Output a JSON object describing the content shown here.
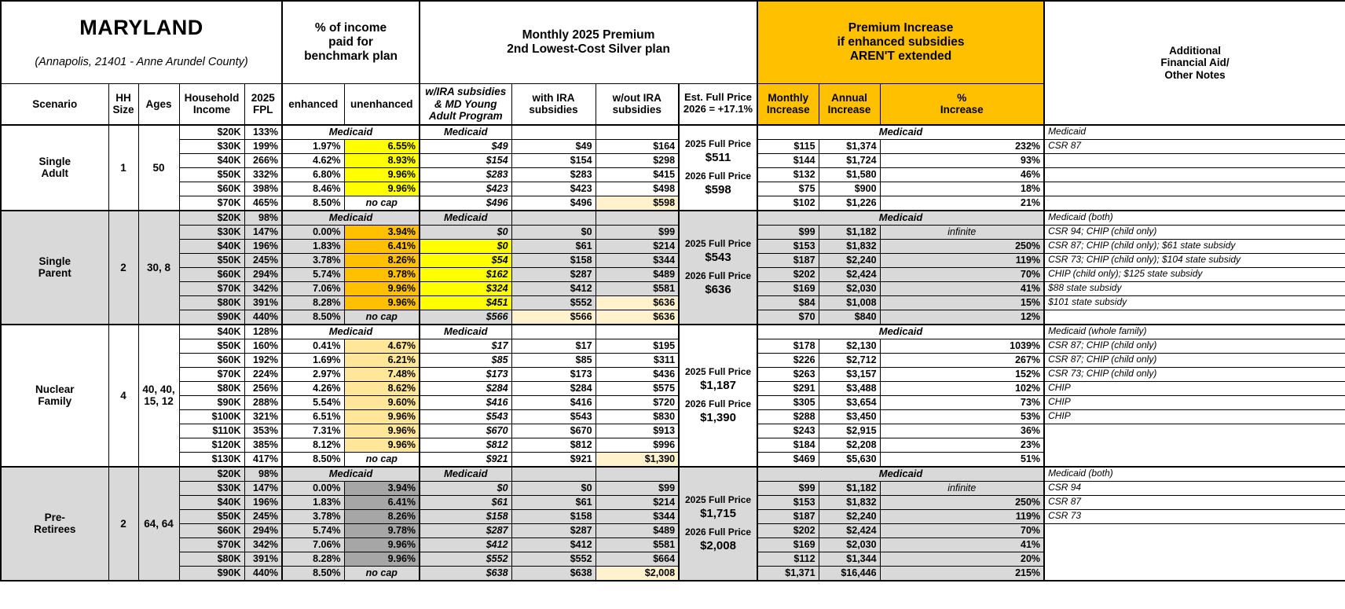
{
  "palette": {
    "orange": "#FFC000",
    "yellow": "#FFFF00",
    "amber": "#FFE699",
    "dkgray": "#A6A6A6",
    "cream": "#FFF2CC",
    "section_gray": "#D9D9D9",
    "white": "#FFFFFF"
  },
  "header": {
    "title": "MARYLAND",
    "subtitle": "(Annapolis, 21401 - Anne Arundel County)",
    "group_income": "% of income\npaid for\nbenchmark plan",
    "group_premium": "Monthly 2025 Premium\n2nd Lowest-Cost Silver plan",
    "group_increase": "Premium Increase\nif enhanced subsidies\nAREN'T extended",
    "group_notes": "Additional\nFinancial Aid/\nOther Notes",
    "cols": {
      "scenario": "Scenario",
      "hh": "HH\nSize",
      "ages": "Ages",
      "income": "Household\nIncome",
      "fpl": "2025\nFPL",
      "enhanced": "enhanced",
      "unenhanced": "unenhanced",
      "wira": "w/IRA subsidies\n& MD Young\nAdult Program",
      "with_ira": "with IRA\nsubsidies",
      "wout_ira": "w/out IRA\nsubsidies",
      "full_price": "Est. Full Price\n2026 = +17.1%",
      "monthly": "Monthly\nIncrease",
      "annual": "Annual\nIncrease",
      "pct": "%\nIncrease"
    }
  },
  "sections": [
    {
      "name": "Single\nAdult",
      "hh": "1",
      "ages": "50",
      "gray": false,
      "note_lines": "all",
      "full_price": {
        "label_2025": "2025 Full Price",
        "value_2025": "$511",
        "label_2026": "2026 Full Price",
        "value_2026": "$598"
      },
      "rows": [
        {
          "medicaid": true,
          "income": "$20K",
          "fpl": "133%",
          "benchmark": "Medicaid",
          "premium": "Medicaid",
          "increase": "Medicaid",
          "note": "Medicaid"
        },
        {
          "income": "$30K",
          "fpl": "199%",
          "enhanced": "1.97%",
          "unenhanced": "6.55%",
          "un_hl": "yellow",
          "wira": "$49",
          "with_ira": "$49",
          "wout": "$164",
          "monthly": "$115",
          "annual": "$1,374",
          "pct": "232%",
          "note": "CSR 87"
        },
        {
          "income": "$40K",
          "fpl": "266%",
          "enhanced": "4.62%",
          "unenhanced": "8.93%",
          "un_hl": "yellow",
          "wira": "$154",
          "with_ira": "$154",
          "wout": "$298",
          "monthly": "$144",
          "annual": "$1,724",
          "pct": "93%",
          "note": ""
        },
        {
          "income": "$50K",
          "fpl": "332%",
          "enhanced": "6.80%",
          "unenhanced": "9.96%",
          "un_hl": "yellow",
          "wira": "$283",
          "with_ira": "$283",
          "wout": "$415",
          "monthly": "$132",
          "annual": "$1,580",
          "pct": "46%",
          "note": ""
        },
        {
          "income": "$60K",
          "fpl": "398%",
          "enhanced": "8.46%",
          "unenhanced": "9.96%",
          "un_hl": "yellow",
          "wira": "$423",
          "with_ira": "$423",
          "wout": "$498",
          "monthly": "$75",
          "annual": "$900",
          "pct": "18%",
          "note": ""
        },
        {
          "income": "$70K",
          "fpl": "465%",
          "enhanced": "8.50%",
          "unenhanced": "no cap",
          "wira": "$496",
          "with_ira": "$496",
          "wout": "$598",
          "wout_hl": "cream",
          "monthly": "$102",
          "annual": "$1,226",
          "pct": "21%",
          "note": ""
        }
      ]
    },
    {
      "name": "Single\nParent",
      "hh": "2",
      "ages": "30, 8",
      "gray": true,
      "note_lines": "all",
      "full_price": {
        "label_2025": "2025 Full Price",
        "value_2025": "$543",
        "label_2026": "2026 Full Price",
        "value_2026": "$636"
      },
      "rows": [
        {
          "medicaid": true,
          "income": "$20K",
          "fpl": "98%",
          "benchmark": "Medicaid",
          "premium": "Medicaid",
          "increase": "Medicaid",
          "note": "Medicaid (both)"
        },
        {
          "income": "$30K",
          "fpl": "147%",
          "enhanced": "0.00%",
          "unenhanced": "3.94%",
          "un_hl": "orange",
          "wira": "$0",
          "with_ira": "$0",
          "wout": "$99",
          "monthly": "$99",
          "annual": "$1,182",
          "pct": "infinite",
          "note": "CSR 94; CHIP (child only)"
        },
        {
          "income": "$40K",
          "fpl": "196%",
          "enhanced": "1.83%",
          "unenhanced": "6.41%",
          "un_hl": "orange",
          "wira": "$0",
          "wira_hl": "yellow",
          "with_ira": "$61",
          "wout": "$214",
          "monthly": "$153",
          "annual": "$1,832",
          "pct": "250%",
          "note": "CSR 87; CHIP (child only); $61 state subsidy"
        },
        {
          "income": "$50K",
          "fpl": "245%",
          "enhanced": "3.78%",
          "unenhanced": "8.26%",
          "un_hl": "orange",
          "wira": "$54",
          "wira_hl": "yellow",
          "with_ira": "$158",
          "wout": "$344",
          "monthly": "$187",
          "annual": "$2,240",
          "pct": "119%",
          "note": "CSR 73; CHIP (child only); $104 state subsidy"
        },
        {
          "income": "$60K",
          "fpl": "294%",
          "enhanced": "5.74%",
          "unenhanced": "9.78%",
          "un_hl": "orange",
          "wira": "$162",
          "wira_hl": "yellow",
          "with_ira": "$287",
          "wout": "$489",
          "monthly": "$202",
          "annual": "$2,424",
          "pct": "70%",
          "note": "CHIP (child only); $125 state subsidy"
        },
        {
          "income": "$70K",
          "fpl": "342%",
          "enhanced": "7.06%",
          "unenhanced": "9.96%",
          "un_hl": "orange",
          "wira": "$324",
          "wira_hl": "yellow",
          "with_ira": "$412",
          "wout": "$581",
          "monthly": "$169",
          "annual": "$2,030",
          "pct": "41%",
          "note": "$88 state subsidy"
        },
        {
          "income": "$80K",
          "fpl": "391%",
          "enhanced": "8.28%",
          "unenhanced": "9.96%",
          "un_hl": "orange",
          "wira": "$451",
          "wira_hl": "yellow",
          "with_ira": "$552",
          "wout": "$636",
          "wout_hl": "cream",
          "monthly": "$84",
          "annual": "$1,008",
          "pct": "15%",
          "note": "$101 state subsidy"
        },
        {
          "income": "$90K",
          "fpl": "440%",
          "enhanced": "8.50%",
          "unenhanced": "no cap",
          "wira": "$566",
          "with_ira": "$566",
          "with_hl": "cream",
          "wout": "$636",
          "wout_hl": "cream",
          "monthly": "$70",
          "annual": "$840",
          "pct": "12%",
          "note": ""
        }
      ]
    },
    {
      "name": "Nuclear\nFamily",
      "hh": "4",
      "ages": "40, 40,\n15, 12",
      "gray": false,
      "note_lines": "content",
      "full_price": {
        "label_2025": "2025 Full Price",
        "value_2025": "$1,187",
        "label_2026": "2026 Full Price",
        "value_2026": "$1,390"
      },
      "rows": [
        {
          "medicaid": true,
          "income": "$40K",
          "fpl": "128%",
          "benchmark": "Medicaid",
          "premium": "Medicaid",
          "increase": "Medicaid",
          "note": "Medicaid (whole family)"
        },
        {
          "income": "$50K",
          "fpl": "160%",
          "enhanced": "0.41%",
          "unenhanced": "4.67%",
          "un_hl": "amber",
          "wira": "$17",
          "with_ira": "$17",
          "wout": "$195",
          "monthly": "$178",
          "annual": "$2,130",
          "pct": "1039%",
          "note": "CSR 87; CHIP (child only)"
        },
        {
          "income": "$60K",
          "fpl": "192%",
          "enhanced": "1.69%",
          "unenhanced": "6.21%",
          "un_hl": "amber",
          "wira": "$85",
          "with_ira": "$85",
          "wout": "$311",
          "monthly": "$226",
          "annual": "$2,712",
          "pct": "267%",
          "note": "CSR 87; CHIP (child only)"
        },
        {
          "income": "$70K",
          "fpl": "224%",
          "enhanced": "2.97%",
          "unenhanced": "7.48%",
          "un_hl": "amber",
          "wira": "$173",
          "with_ira": "$173",
          "wout": "$436",
          "monthly": "$263",
          "annual": "$3,157",
          "pct": "152%",
          "note": "CSR 73; CHIP (child only)"
        },
        {
          "income": "$80K",
          "fpl": "256%",
          "enhanced": "4.26%",
          "unenhanced": "8.62%",
          "un_hl": "amber",
          "wira": "$284",
          "with_ira": "$284",
          "wout": "$575",
          "monthly": "$291",
          "annual": "$3,488",
          "pct": "102%",
          "note": "CHIP"
        },
        {
          "income": "$90K",
          "fpl": "288%",
          "enhanced": "5.54%",
          "unenhanced": "9.60%",
          "un_hl": "amber",
          "wira": "$416",
          "with_ira": "$416",
          "wout": "$720",
          "monthly": "$305",
          "annual": "$3,654",
          "pct": "73%",
          "note": "CHIP"
        },
        {
          "income": "$100K",
          "fpl": "321%",
          "enhanced": "6.51%",
          "unenhanced": "9.96%",
          "un_hl": "amber",
          "wira": "$543",
          "with_ira": "$543",
          "wout": "$830",
          "monthly": "$288",
          "annual": "$3,450",
          "pct": "53%",
          "note": "CHIP"
        },
        {
          "income": "$110K",
          "fpl": "353%",
          "enhanced": "7.31%",
          "unenhanced": "9.96%",
          "un_hl": "amber",
          "wira": "$670",
          "with_ira": "$670",
          "wout": "$913",
          "monthly": "$243",
          "annual": "$2,915",
          "pct": "36%",
          "note": ""
        },
        {
          "income": "$120K",
          "fpl": "385%",
          "enhanced": "8.12%",
          "unenhanced": "9.96%",
          "un_hl": "amber",
          "wira": "$812",
          "with_ira": "$812",
          "wout": "$996",
          "monthly": "$184",
          "annual": "$2,208",
          "pct": "23%",
          "note": ""
        },
        {
          "income": "$130K",
          "fpl": "417%",
          "enhanced": "8.50%",
          "unenhanced": "no cap",
          "wira": "$921",
          "with_ira": "$921",
          "wout": "$1,390",
          "wout_hl": "cream",
          "monthly": "$469",
          "annual": "$5,630",
          "pct": "51%",
          "note": ""
        }
      ]
    },
    {
      "name": "Pre-\nRetirees",
      "hh": "2",
      "ages": "64, 64",
      "gray": true,
      "note_lines": "content",
      "full_price": {
        "label_2025": "2025 Full Price",
        "value_2025": "$1,715",
        "label_2026": "2026 Full Price",
        "value_2026": "$2,008"
      },
      "rows": [
        {
          "medicaid": true,
          "income": "$20K",
          "fpl": "98%",
          "benchmark": "Medicaid",
          "premium": "Medicaid",
          "increase": "Medicaid",
          "note": "Medicaid (both)"
        },
        {
          "income": "$30K",
          "fpl": "147%",
          "enhanced": "0.00%",
          "unenhanced": "3.94%",
          "un_hl": "dkgray",
          "wira": "$0",
          "with_ira": "$0",
          "wout": "$99",
          "monthly": "$99",
          "annual": "$1,182",
          "pct": "infinite",
          "note": "CSR 94"
        },
        {
          "income": "$40K",
          "fpl": "196%",
          "enhanced": "1.83%",
          "unenhanced": "6.41%",
          "un_hl": "dkgray",
          "wira": "$61",
          "with_ira": "$61",
          "wout": "$214",
          "monthly": "$153",
          "annual": "$1,832",
          "pct": "250%",
          "note": "CSR 87"
        },
        {
          "income": "$50K",
          "fpl": "245%",
          "enhanced": "3.78%",
          "unenhanced": "8.26%",
          "un_hl": "dkgray",
          "wira": "$158",
          "with_ira": "$158",
          "wout": "$344",
          "monthly": "$187",
          "annual": "$2,240",
          "pct": "119%",
          "note": "CSR 73"
        },
        {
          "income": "$60K",
          "fpl": "294%",
          "enhanced": "5.74%",
          "unenhanced": "9.78%",
          "un_hl": "dkgray",
          "wira": "$287",
          "with_ira": "$287",
          "wout": "$489",
          "monthly": "$202",
          "annual": "$2,424",
          "pct": "70%",
          "note": ""
        },
        {
          "income": "$70K",
          "fpl": "342%",
          "enhanced": "7.06%",
          "unenhanced": "9.96%",
          "un_hl": "dkgray",
          "wira": "$412",
          "with_ira": "$412",
          "wout": "$581",
          "monthly": "$169",
          "annual": "$2,030",
          "pct": "41%",
          "note": ""
        },
        {
          "income": "$80K",
          "fpl": "391%",
          "enhanced": "8.28%",
          "unenhanced": "9.96%",
          "un_hl": "dkgray",
          "wira": "$552",
          "with_ira": "$552",
          "wout": "$664",
          "monthly": "$112",
          "annual": "$1,344",
          "pct": "20%",
          "note": ""
        },
        {
          "income": "$90K",
          "fpl": "440%",
          "enhanced": "8.50%",
          "unenhanced": "no cap",
          "wira": "$638",
          "with_ira": "$638",
          "wout": "$2,008",
          "wout_hl": "cream",
          "monthly": "$1,371",
          "annual": "$16,446",
          "pct": "215%",
          "note": ""
        }
      ]
    }
  ]
}
